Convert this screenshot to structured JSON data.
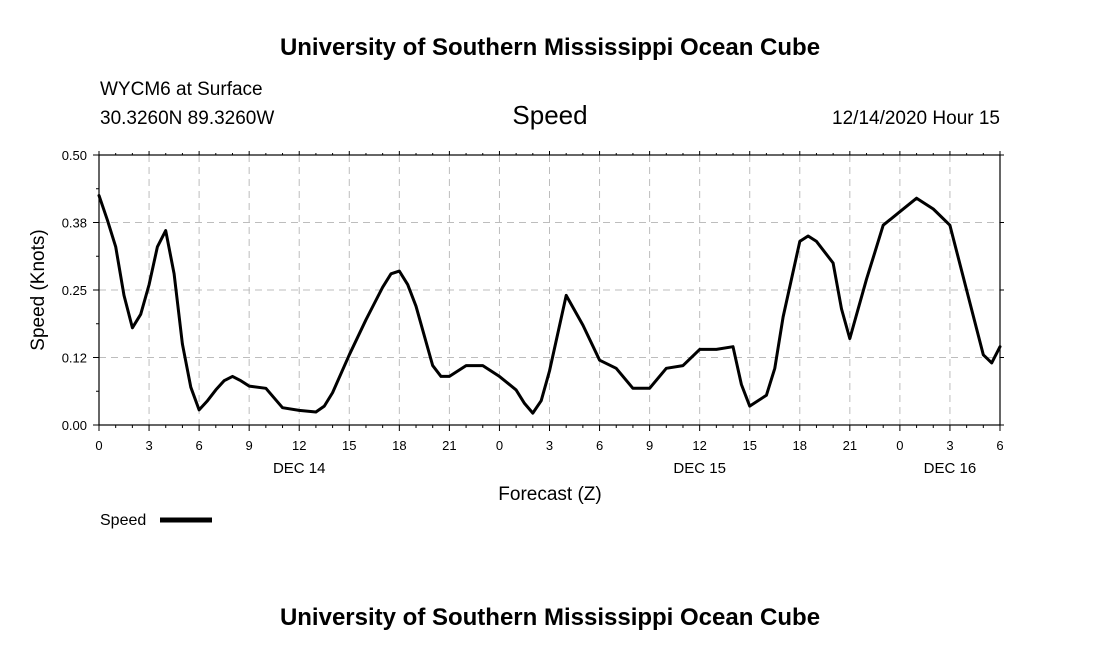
{
  "header": {
    "title_top": "University of Southern Mississippi Ocean Cube",
    "title_bottom": "University of Southern Mississippi Ocean Cube",
    "station": "WYCM6 at Surface",
    "location": "30.3260N 89.3260W",
    "variable": "Speed",
    "run_time": "12/14/2020 Hour 15"
  },
  "chart_data": {
    "type": "line",
    "title": "Speed",
    "xlabel": "Forecast (Z)",
    "ylabel": "Speed (Knots)",
    "ylim": [
      0,
      0.5
    ],
    "xlim": [
      0,
      54
    ],
    "y_ticks": [
      "0.00",
      "0.12",
      "0.25",
      "0.38",
      "0.50"
    ],
    "x_ticks": [
      "0",
      "3",
      "6",
      "9",
      "12",
      "15",
      "18",
      "21",
      "0",
      "3",
      "6",
      "9",
      "12",
      "15",
      "18",
      "21",
      "0",
      "3",
      "6"
    ],
    "date_labels": [
      {
        "label": "DEC 14",
        "x": 12
      },
      {
        "label": "DEC 15",
        "x": 36
      },
      {
        "label": "DEC 16",
        "x": 51
      }
    ],
    "grid": true,
    "legend": {
      "position": "bottom-left",
      "entries": [
        "Speed"
      ]
    },
    "series": [
      {
        "name": "Speed",
        "color": "#000000",
        "x": [
          0,
          0.5,
          1,
          1.5,
          2,
          2.5,
          3,
          3.5,
          4,
          4.5,
          5,
          5.5,
          6,
          6.5,
          7,
          7.5,
          8,
          8.5,
          9,
          10,
          11,
          12,
          13,
          13.5,
          14,
          15,
          16,
          16.5,
          17,
          17.5,
          18,
          18.5,
          19,
          20,
          20.5,
          21,
          22,
          23,
          24,
          25,
          25.5,
          26,
          26.5,
          27,
          28,
          29,
          30,
          31,
          32,
          33,
          34,
          35,
          36,
          37,
          38,
          38.5,
          39,
          40,
          40.5,
          41,
          42,
          42.5,
          43,
          44,
          44.5,
          45,
          46,
          46.5,
          47,
          48,
          49,
          50,
          51,
          52,
          53,
          53.5,
          54
        ],
        "values": [
          0.425,
          0.38,
          0.33,
          0.24,
          0.18,
          0.205,
          0.26,
          0.33,
          0.36,
          0.28,
          0.15,
          0.07,
          0.028,
          0.045,
          0.065,
          0.082,
          0.09,
          0.082,
          0.072,
          0.068,
          0.032,
          0.027,
          0.024,
          0.035,
          0.06,
          0.13,
          0.195,
          0.225,
          0.255,
          0.28,
          0.285,
          0.26,
          0.22,
          0.11,
          0.09,
          0.09,
          0.11,
          0.11,
          0.09,
          0.065,
          0.04,
          0.022,
          0.045,
          0.1,
          0.24,
          0.185,
          0.12,
          0.105,
          0.068,
          0.068,
          0.105,
          0.11,
          0.14,
          0.14,
          0.145,
          0.075,
          0.035,
          0.055,
          0.105,
          0.2,
          0.34,
          0.35,
          0.34,
          0.3,
          0.215,
          0.16,
          0.27,
          0.32,
          0.37,
          0.395,
          0.42,
          0.4,
          0.37,
          0.25,
          0.13,
          0.115,
          0.145
        ]
      }
    ]
  }
}
